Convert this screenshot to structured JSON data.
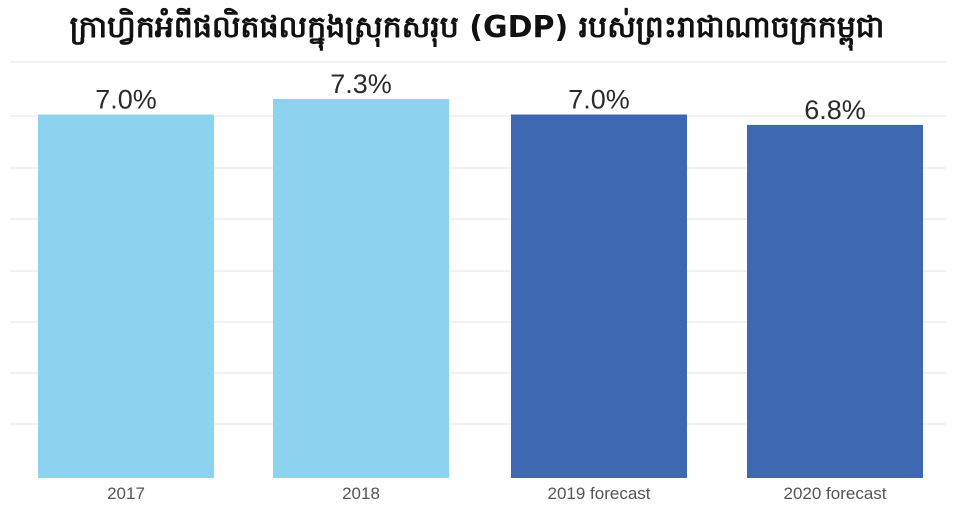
{
  "chart_data": {
    "type": "bar",
    "title": "ក្រាហ្វិកអំពីផលិតផលក្នុងស្រុកសរុប (GDP) របស់ព្រះរាជាណាចក្រកម្ពុជា",
    "categories": [
      "2017",
      "2018",
      "2019 forecast",
      "2020 forecast"
    ],
    "values": [
      7.0,
      7.3,
      7.0,
      6.8
    ],
    "value_labels": [
      "7.0%",
      "7.3%",
      "7.0%",
      "6.8%"
    ],
    "colors": [
      "#8dd3ef",
      "#8dd3ef",
      "#3e69b2",
      "#3e69b2"
    ],
    "xlabel": "",
    "ylabel": "",
    "ylim": [
      0,
      8.05
    ],
    "grid": true,
    "legend": "none"
  }
}
